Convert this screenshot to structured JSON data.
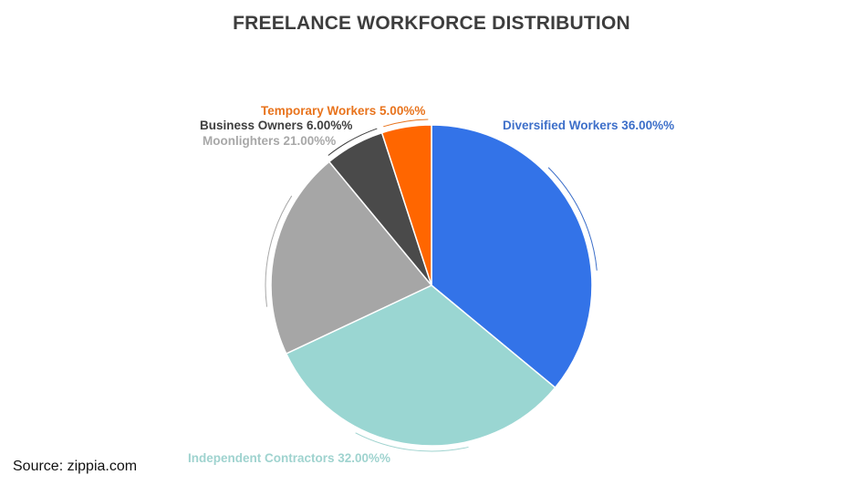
{
  "title": "FREELANCE WORKFORCE DISTRIBUTION",
  "source": "Source: zippia.com",
  "chart_data": {
    "type": "pie",
    "title": "FREELANCE WORKFORCE DISTRIBUTION",
    "categories": [
      "Diversified Workers",
      "Independent Contractors",
      "Moonlighters",
      "Business Owners",
      "Temporary Workers"
    ],
    "values": [
      36.0,
      32.0,
      21.0,
      6.0,
      5.0
    ],
    "colors": [
      "#3373e8",
      "#9ad6d2",
      "#a6a6a6",
      "#4a4a4a",
      "#ff6600"
    ],
    "labels": [
      "Diversified Workers 36.00%%",
      "Independent Contractors 32.00%%",
      "Moonlighters 21.00%%",
      "Business Owners 6.00%%",
      "Temporary Workers 5.00%%"
    ],
    "start_angle": "12 o'clock, clockwise",
    "legend": "none (outside labels)"
  },
  "label_colors": {
    "diversified": "#3d6fc9",
    "independent": "#9fd3cf",
    "moonlighters": "#a8a8a8",
    "business": "#3f3f3f",
    "temporary": "#e8731c"
  }
}
